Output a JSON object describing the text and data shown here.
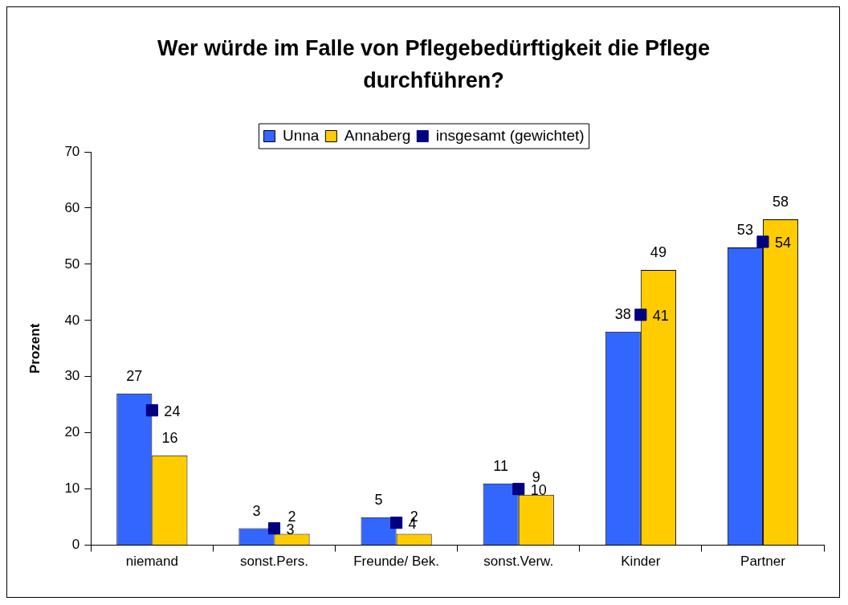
{
  "chart_data": {
    "type": "bar",
    "title": "Wer würde im Falle von Pflegebedürftigkeit die Pflege durchführen?",
    "ylabel": "Prozent",
    "categories": [
      "niemand",
      "sonst.Pers.",
      "Freunde/ Bek.",
      "sonst.Verw.",
      "Kinder",
      "Partner"
    ],
    "series": [
      {
        "name": "Unna",
        "color": "#3366ff",
        "values": [
          27,
          3,
          5,
          11,
          38,
          53
        ]
      },
      {
        "name": "Annaberg",
        "color": "#ffcc00",
        "values": [
          16,
          2,
          2,
          9,
          49,
          58
        ]
      },
      {
        "name": "insgesamt (gewichtet)",
        "type": "scatter",
        "color": "#000080",
        "x": [
          "niemand",
          "sonst.Pers.",
          "Freunde/ Bek.",
          "sonst.Verw.",
          "Kinder",
          "Partner"
        ],
        "values": [
          24,
          3,
          4,
          10,
          41,
          54
        ]
      }
    ],
    "ylim": [
      0,
      70
    ],
    "yticks": [
      0,
      10,
      20,
      30,
      40,
      50,
      60,
      70
    ],
    "grid": false,
    "legend": "top",
    "marker": "square",
    "data_labels": true
  }
}
